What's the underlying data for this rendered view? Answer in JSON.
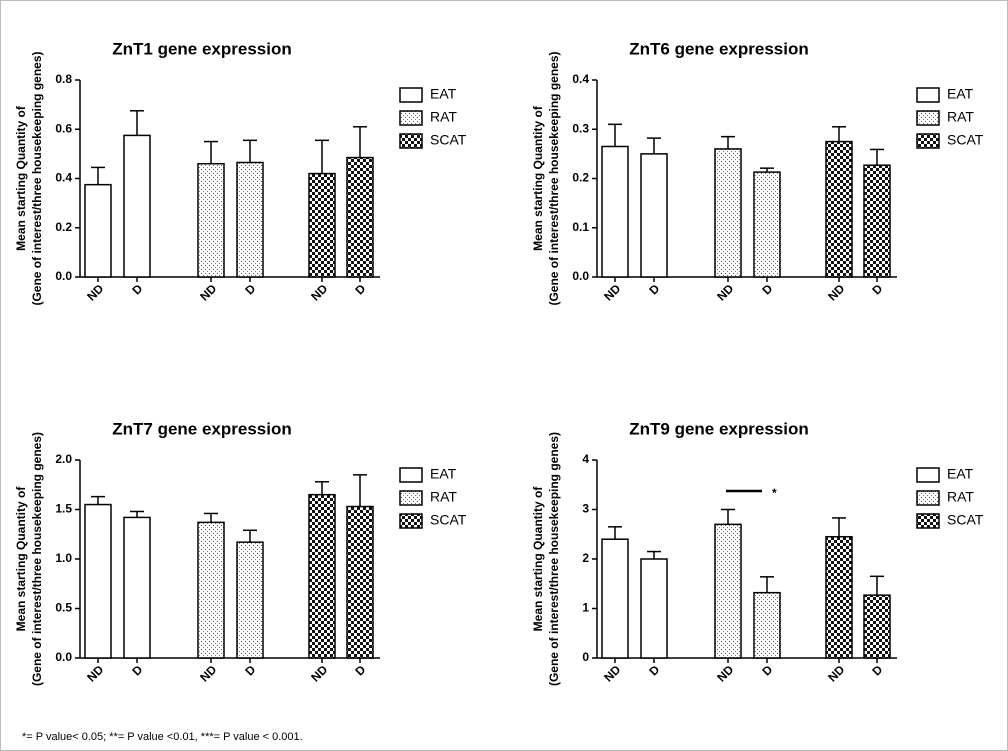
{
  "chart_data": [
    {
      "type": "bar",
      "title": "ZnT1 gene expression",
      "ylabel": [
        "Mean starting Quantity of",
        "(Gene of interest/three housekeeping genes)"
      ],
      "categories": [
        "ND",
        "D"
      ],
      "series": [
        {
          "name": "EAT",
          "pattern": "none",
          "values": [
            0.375,
            0.575
          ],
          "errors": [
            0.07,
            0.1
          ]
        },
        {
          "name": "RAT",
          "pattern": "dots",
          "values": [
            0.46,
            0.465
          ],
          "errors": [
            0.09,
            0.09
          ]
        },
        {
          "name": "SCAT",
          "pattern": "checker",
          "values": [
            0.42,
            0.485
          ],
          "errors": [
            0.135,
            0.125
          ]
        }
      ],
      "ylim": [
        0,
        0.8
      ],
      "yticks": [
        {
          "value": 0,
          "label": "0.0"
        },
        0.2,
        0.4,
        0.6,
        0.8
      ],
      "legend": "right"
    },
    {
      "type": "bar",
      "title": "ZnT6 gene expression",
      "ylabel": [
        "Mean starting Quantity of",
        "(Gene of interest/three housekeeping genes)"
      ],
      "categories": [
        "ND",
        "D"
      ],
      "series": [
        {
          "name": "EAT",
          "pattern": "none",
          "values": [
            0.265,
            0.25
          ],
          "errors": [
            0.045,
            0.032
          ]
        },
        {
          "name": "RAT",
          "pattern": "dots",
          "values": [
            0.26,
            0.213
          ],
          "errors": [
            0.025,
            0.008
          ]
        },
        {
          "name": "SCAT",
          "pattern": "checker",
          "values": [
            0.275,
            0.227
          ],
          "errors": [
            0.03,
            0.032
          ]
        }
      ],
      "ylim": [
        0,
        0.4
      ],
      "yticks": [
        {
          "value": 0,
          "label": "0.0"
        },
        0.1,
        0.2,
        0.3,
        0.4
      ],
      "legend": "right"
    },
    {
      "type": "bar",
      "title": "ZnT7 gene expression",
      "ylabel": [
        "Mean starting Quantity of",
        "(Gene of interest/three housekeeping genes)"
      ],
      "categories": [
        "ND",
        "D"
      ],
      "series": [
        {
          "name": "EAT",
          "pattern": "none",
          "values": [
            1.55,
            1.42
          ],
          "errors": [
            0.08,
            0.06
          ]
        },
        {
          "name": "RAT",
          "pattern": "dots",
          "values": [
            1.37,
            1.17
          ],
          "errors": [
            0.09,
            0.12
          ]
        },
        {
          "name": "SCAT",
          "pattern": "checker",
          "values": [
            1.65,
            1.53
          ],
          "errors": [
            0.13,
            0.32
          ]
        }
      ],
      "ylim": [
        0,
        2
      ],
      "yticks": [
        {
          "value": 0,
          "label": "0.0"
        },
        0.5,
        {
          "value": 1,
          "label": "1.0"
        },
        1.5,
        {
          "value": 2,
          "label": "2.0"
        }
      ],
      "legend": "right"
    },
    {
      "type": "bar",
      "title": "ZnT9 gene expression",
      "ylabel": [
        "Mean starting Quantity of",
        "(Gene of interest/three housekeeping genes)"
      ],
      "categories": [
        "ND",
        "D"
      ],
      "series": [
        {
          "name": "EAT",
          "pattern": "none",
          "values": [
            2.4,
            2.0
          ],
          "errors": [
            0.25,
            0.15
          ]
        },
        {
          "name": "RAT",
          "pattern": "dots",
          "values": [
            2.7,
            1.32
          ],
          "errors": [
            0.3,
            0.32
          ]
        },
        {
          "name": "SCAT",
          "pattern": "checker",
          "values": [
            2.45,
            1.27
          ],
          "errors": [
            0.38,
            0.38
          ]
        }
      ],
      "ylim": [
        0,
        4
      ],
      "yticks": [
        0,
        1,
        2,
        3,
        4
      ],
      "legend": "right",
      "annotation": "*"
    }
  ],
  "footnote": "*= P value< 0.05; **= P value <0.01, ***= P value < 0.001."
}
